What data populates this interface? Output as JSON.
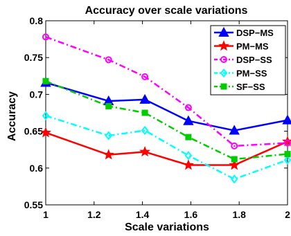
{
  "chart_data": {
    "type": "line",
    "title": "Accuracy over scale variations",
    "xlabel": "Scale variations",
    "ylabel": "Accuracy",
    "xlim": [
      1,
      2
    ],
    "ylim": [
      0.55,
      0.8
    ],
    "xticks": [
      1,
      1.2,
      1.4,
      1.6,
      1.8,
      2
    ],
    "xtick_labels": [
      "1",
      "1.2",
      "1.4",
      "1.6",
      "1.8",
      "2"
    ],
    "yticks": [
      0.55,
      0.6,
      0.65,
      0.7,
      0.75,
      0.8
    ],
    "ytick_labels": [
      "0.55",
      "0.6",
      "0.65",
      "0.7",
      "0.75",
      "0.8"
    ],
    "grid": false,
    "legend_position": "top-right",
    "x": [
      1,
      1.26,
      1.41,
      1.59,
      1.78,
      2
    ],
    "series": [
      {
        "name": "DSP−MS",
        "color": "#0000ff",
        "linestyle": "solid",
        "marker": "triangle-up",
        "values": [
          0.716,
          0.691,
          0.693,
          0.664,
          0.651,
          0.665
        ]
      },
      {
        "name": "PM−MS",
        "color": "#ff0000",
        "linestyle": "solid",
        "marker": "star",
        "values": [
          0.648,
          0.618,
          0.622,
          0.604,
          0.604,
          0.636
        ]
      },
      {
        "name": "DSP−SS",
        "color": "#ff00ff",
        "linestyle": "dashdot",
        "marker": "circle",
        "values": [
          0.778,
          0.747,
          0.724,
          0.682,
          0.63,
          0.634
        ]
      },
      {
        "name": "PM−SS",
        "color": "#00ffff",
        "linestyle": "dashdot",
        "marker": "diamond",
        "values": [
          0.671,
          0.644,
          0.651,
          0.617,
          0.585,
          0.611
        ]
      },
      {
        "name": "SF−SS",
        "color": "#00cc00",
        "linestyle": "dashdot",
        "marker": "square",
        "values": [
          0.718,
          0.684,
          0.675,
          0.642,
          0.612,
          0.619
        ]
      }
    ]
  }
}
